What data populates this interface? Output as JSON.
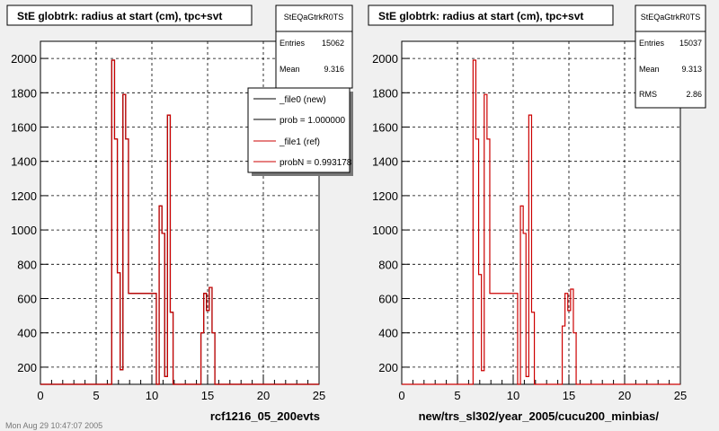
{
  "colors": {
    "background": "#f0f0f0",
    "frame": "#ffffff",
    "new_hist": "#000000",
    "ref_hist": "#cc0000",
    "grid": "#000000"
  },
  "chart_data": [
    {
      "type": "histogram",
      "title": "StE globtrk: radius at start (cm), tpc+svt",
      "xlabel": "rcf1216_05_200evts",
      "ylabel": "",
      "xlim": [
        0,
        25
      ],
      "ylim": [
        100,
        2100
      ],
      "xticks": [
        0,
        5,
        10,
        15,
        20,
        25
      ],
      "yticks": [
        200,
        400,
        600,
        800,
        1000,
        1200,
        1400,
        1600,
        1800,
        2000
      ],
      "grid": true,
      "bin_edges": [
        6.4,
        6.65,
        6.9,
        7.15,
        7.4,
        7.65,
        7.9,
        10.4,
        10.65,
        10.9,
        11.15,
        11.4,
        11.65,
        11.9,
        14.4,
        14.65,
        14.9,
        15.15,
        15.4,
        15.65
      ],
      "series": [
        {
          "name": "_file0 (new)",
          "values": [
            1990,
            1530,
            750,
            185,
            1790,
            1530,
            630,
            0,
            1140,
            980,
            145,
            1670,
            520,
            0,
            400,
            630,
            530,
            665,
            400,
            0
          ]
        },
        {
          "name": "_file1 (ref)",
          "values": [
            1990,
            1530,
            750,
            185,
            1790,
            1530,
            630,
            0,
            1140,
            980,
            145,
            1670,
            520,
            0,
            400,
            630,
            530,
            665,
            400,
            0
          ]
        }
      ],
      "stats": {
        "title": "StEQaGtrkR0TS",
        "rows": [
          {
            "label": "Entries",
            "value": "15062"
          },
          {
            "label": "Mean",
            "value": "9.316"
          }
        ]
      },
      "legend": {
        "placement": "top-right",
        "entries": [
          {
            "label": "_file0 (new)",
            "color": "#000000"
          },
          {
            "label": "prob = 1.000000",
            "color": "#000000"
          },
          {
            "label": "_file1 (ref)",
            "color": "#cc0000"
          },
          {
            "label": "probN = 0.993178",
            "color": "#cc0000"
          }
        ]
      }
    },
    {
      "type": "histogram",
      "title": "StE globtrk: radius at start (cm), tpc+svt",
      "xlabel": "new/trs_sl302/year_2005/cucu200_minbias/",
      "ylabel": "",
      "xlim": [
        0,
        25
      ],
      "ylim": [
        100,
        2100
      ],
      "xticks": [
        0,
        5,
        10,
        15,
        20,
        25
      ],
      "yticks": [
        200,
        400,
        600,
        800,
        1000,
        1200,
        1400,
        1600,
        1800,
        2000
      ],
      "grid": true,
      "bin_edges": [
        6.4,
        6.65,
        6.9,
        7.15,
        7.4,
        7.65,
        7.9,
        10.4,
        10.65,
        10.9,
        11.15,
        11.4,
        11.65,
        11.9,
        14.4,
        14.65,
        14.9,
        15.15,
        15.4,
        15.65
      ],
      "series": [
        {
          "name": "_file1 (ref)",
          "values": [
            1990,
            1530,
            740,
            180,
            1790,
            1530,
            630,
            0,
            1140,
            980,
            145,
            1670,
            520,
            0,
            440,
            630,
            530,
            655,
            400,
            0
          ]
        }
      ],
      "stats": {
        "title": "StEQaGtrkR0TS",
        "rows": [
          {
            "label": "Entries",
            "value": "15037"
          },
          {
            "label": "Mean",
            "value": "9.313"
          },
          {
            "label": "RMS",
            "value": "2.86"
          }
        ]
      }
    }
  ],
  "footer": "Mon Aug 29 10:47:07 2005"
}
